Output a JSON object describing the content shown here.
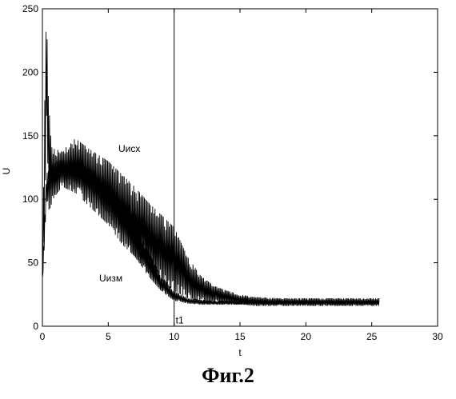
{
  "figure": {
    "caption": "Фиг.2"
  },
  "chart_data": {
    "type": "line",
    "xlabel": "t",
    "ylabel": "U",
    "xlim": [
      0,
      30
    ],
    "ylim": [
      0,
      250
    ],
    "xticks": [
      0,
      5,
      10,
      15,
      20,
      25,
      30
    ],
    "yticks": [
      0,
      50,
      100,
      150,
      200,
      250
    ],
    "grid": false,
    "vline": {
      "x": 10,
      "label": "t1"
    },
    "series": [
      {
        "name": "Uисх",
        "color": "#000000",
        "envelope": {
          "x": [
            0,
            0.15,
            0.3,
            0.5,
            0.8,
            1.5,
            2.5,
            3.5,
            5,
            6,
            7,
            8,
            9,
            10,
            11,
            12,
            13,
            14,
            15,
            16,
            18,
            20,
            22,
            24,
            25.6
          ],
          "upper": [
            45,
            160,
            250,
            170,
            140,
            138,
            148,
            140,
            130,
            120,
            110,
            98,
            88,
            78,
            55,
            40,
            32,
            28,
            25,
            23,
            22,
            22,
            22,
            22,
            22
          ],
          "lower": [
            30,
            70,
            160,
            90,
            100,
            110,
            105,
            95,
            80,
            65,
            55,
            42,
            35,
            28,
            22,
            20,
            19,
            18,
            17,
            16,
            16,
            16,
            16,
            16,
            16
          ]
        }
      },
      {
        "name": "Uизм",
        "color": "#000000",
        "envelope": {
          "x": [
            0,
            0.3,
            0.6,
            1,
            2,
            3,
            4,
            5,
            6,
            7,
            8,
            9,
            10,
            11,
            12,
            13,
            14,
            15,
            16,
            18,
            20,
            22,
            24,
            25.6
          ],
          "upper": [
            40,
            120,
            125,
            130,
            132,
            128,
            122,
            115,
            100,
            80,
            60,
            40,
            28,
            22,
            21,
            20,
            20,
            20,
            20,
            20,
            20,
            20,
            20,
            20
          ],
          "lower": [
            30,
            95,
            105,
            110,
            115,
            108,
            100,
            88,
            70,
            55,
            40,
            28,
            20,
            18,
            17,
            17,
            17,
            17,
            17,
            17,
            17,
            17,
            17,
            17
          ]
        }
      }
    ],
    "annotations": [
      {
        "text": "Uисх",
        "x": 11,
        "y": 140
      },
      {
        "text": "Uизм",
        "x": 5,
        "y": 35
      }
    ]
  }
}
